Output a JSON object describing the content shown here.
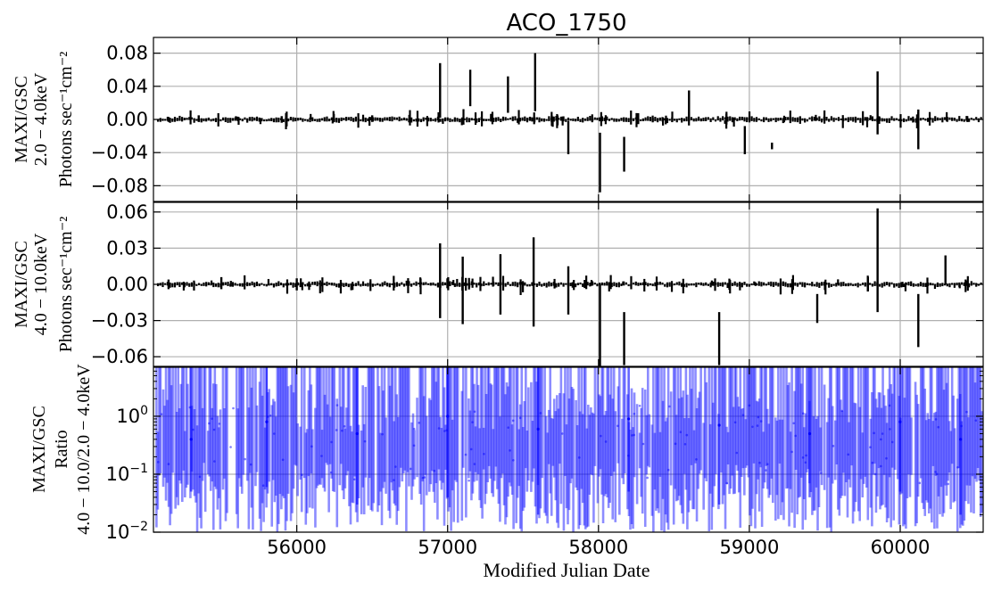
{
  "chart_data": [
    {
      "type": "scatter",
      "panel": "top",
      "title": "ACO_1750",
      "ylabel_lines": [
        "MAXI/GSC",
        "2.0 − 4.0keV",
        "Photons sec⁻¹cm⁻²"
      ],
      "xlim": [
        55050,
        60550
      ],
      "ylim": [
        -0.099,
        0.099
      ],
      "yticks": [
        -0.08,
        -0.04,
        0.0,
        0.04,
        0.08
      ],
      "ytick_labels": [
        "−0.08",
        "−0.04",
        "0.00",
        "0.04",
        "0.08"
      ],
      "grid": true,
      "series": [
        {
          "style": "error-bars",
          "color": "#000000",
          "points": [
            {
              "x": 55150,
              "y": 0.0,
              "yerr": 0.003
            },
            {
              "x": 55350,
              "y": 0.001,
              "yerr": 0.004
            },
            {
              "x": 55900,
              "y": 0.0,
              "yerr": 0.004
            },
            {
              "x": 56500,
              "y": 0.001,
              "yerr": 0.004
            },
            {
              "x": 56950,
              "y": 0.035,
              "yerr": 0.033
            },
            {
              "x": 57150,
              "y": 0.038,
              "yerr": 0.022
            },
            {
              "x": 57400,
              "y": 0.03,
              "yerr": 0.022
            },
            {
              "x": 57580,
              "y": 0.045,
              "yerr": 0.035
            },
            {
              "x": 57800,
              "y": -0.022,
              "yerr": 0.02
            },
            {
              "x": 58010,
              "y": -0.052,
              "yerr": 0.036
            },
            {
              "x": 58170,
              "y": -0.042,
              "yerr": 0.021
            },
            {
              "x": 58600,
              "y": 0.018,
              "yerr": 0.017
            },
            {
              "x": 58970,
              "y": -0.025,
              "yerr": 0.017
            },
            {
              "x": 59150,
              "y": -0.032,
              "yerr": 0.004
            },
            {
              "x": 59850,
              "y": 0.02,
              "yerr": 0.038
            },
            {
              "x": 60120,
              "y": -0.012,
              "yerr": 0.024
            }
          ]
        }
      ]
    },
    {
      "type": "scatter",
      "panel": "middle",
      "ylabel_lines": [
        "MAXI/GSC",
        "4.0 − 10.0keV",
        "Photons sec⁻¹cm⁻²"
      ],
      "xlim": [
        55050,
        60550
      ],
      "ylim": [
        -0.068,
        0.068
      ],
      "yticks": [
        -0.06,
        -0.03,
        0.0,
        0.03,
        0.06
      ],
      "ytick_labels": [
        "−0.06",
        "−0.03",
        "0.00",
        "0.03",
        "0.06"
      ],
      "grid": true,
      "series": [
        {
          "style": "error-bars",
          "color": "#000000",
          "points": [
            {
              "x": 55150,
              "y": 0.0,
              "yerr": 0.004
            },
            {
              "x": 55500,
              "y": 0.001,
              "yerr": 0.005
            },
            {
              "x": 56000,
              "y": 0.0,
              "yerr": 0.005
            },
            {
              "x": 56950,
              "y": 0.003,
              "yerr": 0.031
            },
            {
              "x": 57100,
              "y": -0.005,
              "yerr": 0.028
            },
            {
              "x": 57350,
              "y": 0.0,
              "yerr": 0.025
            },
            {
              "x": 57570,
              "y": 0.002,
              "yerr": 0.037
            },
            {
              "x": 57800,
              "y": -0.005,
              "yerr": 0.02
            },
            {
              "x": 58010,
              "y": -0.035,
              "yerr": 0.035
            },
            {
              "x": 58170,
              "y": -0.045,
              "yerr": 0.022
            },
            {
              "x": 58800,
              "y": -0.045,
              "yerr": 0.022
            },
            {
              "x": 59450,
              "y": -0.02,
              "yerr": 0.012
            },
            {
              "x": 59850,
              "y": 0.02,
              "yerr": 0.043
            },
            {
              "x": 60120,
              "y": -0.03,
              "yerr": 0.022
            },
            {
              "x": 60300,
              "y": 0.012,
              "yerr": 0.012
            }
          ]
        }
      ]
    },
    {
      "type": "scatter",
      "panel": "bottom",
      "ylabel_lines": [
        "MAXI/GSC",
        "Ratio",
        "4.0 − 10.0/2.0 − 4.0keV"
      ],
      "xlabel": "Modified Julian Date",
      "xlim": [
        55050,
        60550
      ],
      "xticks": [
        56000,
        57000,
        58000,
        59000,
        60000
      ],
      "xtick_labels": [
        "56000",
        "57000",
        "58000",
        "59000",
        "60000"
      ],
      "yscale": "log",
      "ylim": [
        0.01,
        7
      ],
      "yticks": [
        0.01,
        0.1,
        1
      ],
      "grid": true,
      "series": [
        {
          "style": "error-bars",
          "color": "#0000ff",
          "alpha": 0.45,
          "points": [
            {
              "x": 55300,
              "y": 0.4,
              "ylo": 0.05,
              "yhi": 7
            },
            {
              "x": 55800,
              "y": 0.8,
              "ylo": 0.06,
              "yhi": 7
            },
            {
              "x": 56400,
              "y": 0.5,
              "ylo": 0.03,
              "yhi": 7
            },
            {
              "x": 57000,
              "y": 1.0,
              "ylo": 0.04,
              "yhi": 7
            },
            {
              "x": 57600,
              "y": 0.6,
              "ylo": 0.02,
              "yhi": 7
            },
            {
              "x": 58200,
              "y": 0.9,
              "ylo": 0.05,
              "yhi": 7
            },
            {
              "x": 58800,
              "y": 0.7,
              "ylo": 0.03,
              "yhi": 7
            },
            {
              "x": 59400,
              "y": 0.5,
              "ylo": 0.04,
              "yhi": 7
            },
            {
              "x": 60000,
              "y": 0.8,
              "ylo": 0.05,
              "yhi": 7
            },
            {
              "x": 60400,
              "y": 0.4,
              "ylo": 0.02,
              "yhi": 7
            }
          ]
        }
      ]
    }
  ]
}
